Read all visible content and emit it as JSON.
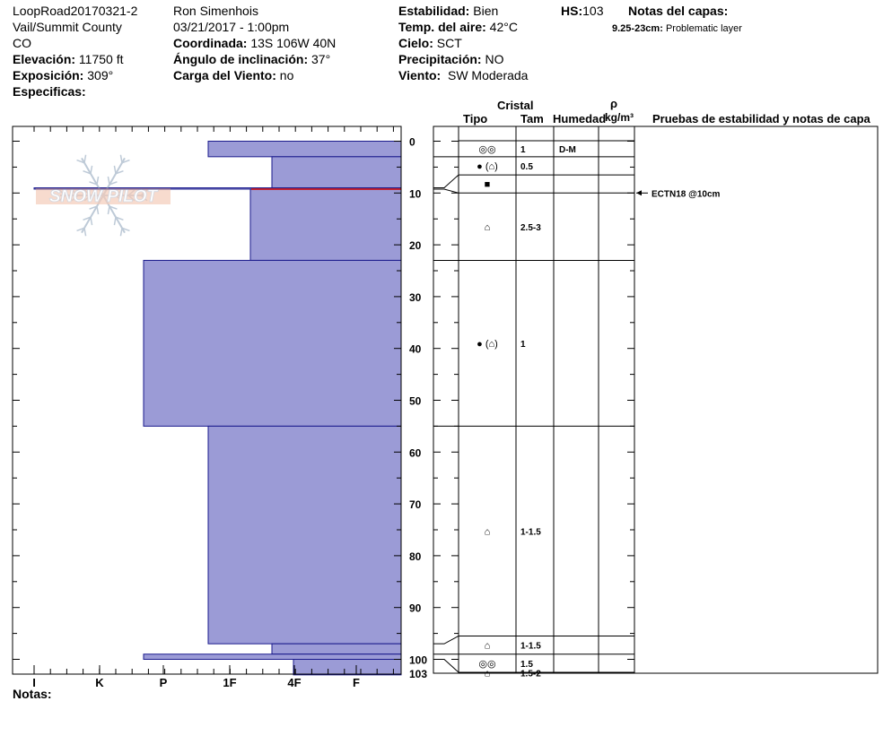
{
  "header": {
    "site": "LoopRoad20170321-2",
    "location": "Vail/Summit County",
    "state": "CO",
    "elevation_label": "Elevación:",
    "elevation_value": "11750 ft",
    "aspect_label": "Exposición:",
    "aspect_value": "309°",
    "specifics_label": "Especificas:",
    "observer": "Ron Simenhois",
    "datetime": "03/21/2017 - 1:00pm",
    "coord_label": "Coordinada:",
    "coord_value": "13S 106W 40N",
    "slope_label": "Ángulo de inclinación:",
    "slope_value": "37°",
    "wind_load_label": "Carga del Viento:",
    "wind_load_value": "no",
    "stability_label": "Estabilidad:",
    "stability_value": "Bien",
    "air_temp_label": "Temp. del aire:",
    "air_temp_value": "42°C",
    "sky_label": "Cielo:",
    "sky_value": "SCT",
    "precip_label": "Precipitación:",
    "precip_value": "NO",
    "wind_label": "Viento:",
    "wind_value": "SW Moderada",
    "hs_label": "HS:",
    "hs_value": "103",
    "layer_notes_label": "Notas del capas:",
    "layer_note_range": "9.25-23cm:",
    "layer_note_text": "Problematic layer"
  },
  "logo": {
    "text": "SNOW PILOT"
  },
  "table_headers": {
    "crystal": "Cristal",
    "type": "Tipo",
    "size": "Tam",
    "moisture": "Humedad",
    "rho": "ρ",
    "density_unit": "kg/m³",
    "tests": "Pruebas de estabilidad y notas de capa"
  },
  "notes_label": "Notas:",
  "colors": {
    "fill": "#9b9bd6",
    "stroke": "#1a1a8c",
    "red_line": "#cc0000"
  },
  "chart_data": {
    "type": "snow_profile",
    "y_axis": {
      "label": "",
      "range": [
        0,
        103
      ],
      "unit": "cm",
      "ticks": [
        0,
        10,
        20,
        30,
        40,
        50,
        60,
        70,
        80,
        90,
        100
      ],
      "extra_tick_label": "103"
    },
    "x_axis": {
      "labels": [
        "I",
        "K",
        "P",
        "1F",
        "4F",
        "F"
      ],
      "direction": "reversed"
    },
    "hardness_layers": [
      {
        "top": 0,
        "bottom": 3,
        "hardness": "P+"
      },
      {
        "top": 3,
        "bottom": 9,
        "hardness": "1F+"
      },
      {
        "top": 9,
        "bottom": 9.25,
        "hardness": "I"
      },
      {
        "top": 9.25,
        "bottom": 23,
        "hardness": "1F"
      },
      {
        "top": 23,
        "bottom": 55,
        "hardness": "P-"
      },
      {
        "top": 55,
        "bottom": 97,
        "hardness": "P+"
      },
      {
        "top": 97,
        "bottom": 99,
        "hardness": "1F+"
      },
      {
        "top": 99,
        "bottom": 100,
        "hardness": "P-"
      },
      {
        "top": 100,
        "bottom": 103,
        "hardness": "4F"
      }
    ],
    "table_rows": [
      {
        "top": 0,
        "bottom": 3,
        "grain": "◎◎",
        "size": "1",
        "moisture": "D-M"
      },
      {
        "top": 3,
        "bottom": 6.5,
        "grain": "● (⌂)",
        "size": "0.5",
        "moisture": ""
      },
      {
        "top": 6.5,
        "bottom": 10,
        "grain": "■",
        "size": "",
        "moisture": ""
      },
      {
        "top": 10,
        "bottom": 23,
        "grain": "⌂",
        "size": "2.5-3",
        "moisture": ""
      },
      {
        "top": 23,
        "bottom": 55,
        "grain": "● (⌂)",
        "size": "1",
        "moisture": ""
      },
      {
        "top": 55,
        "bottom": 95.5,
        "grain": "⌂",
        "size": "1-1.5",
        "moisture": ""
      },
      {
        "top": 95.5,
        "bottom": 99,
        "grain": "⌂",
        "size": "1-1.5",
        "moisture": ""
      },
      {
        "top": 99,
        "bottom": 102.5,
        "grain": "◎◎",
        "size": "1.5",
        "moisture": ""
      },
      {
        "top": 102.5,
        "bottom": 106,
        "grain": "⌂",
        "size": "1.5-2",
        "moisture": ""
      }
    ],
    "connectors": [
      {
        "depth": 3,
        "row_boundary": 3
      },
      {
        "depth": 9,
        "row_boundary": 6.5
      },
      {
        "depth": 9.25,
        "row_boundary": 10
      },
      {
        "depth": 23,
        "row_boundary": 23
      },
      {
        "depth": 55,
        "row_boundary": 55
      },
      {
        "depth": 97,
        "row_boundary": 95.5
      },
      {
        "depth": 99,
        "row_boundary": 99
      },
      {
        "depth": 100,
        "row_boundary": 102.5
      }
    ],
    "red_marker_depth": 9.25,
    "stability_tests": [
      {
        "depth": 10,
        "label": "ECTN18 @10cm"
      }
    ]
  }
}
